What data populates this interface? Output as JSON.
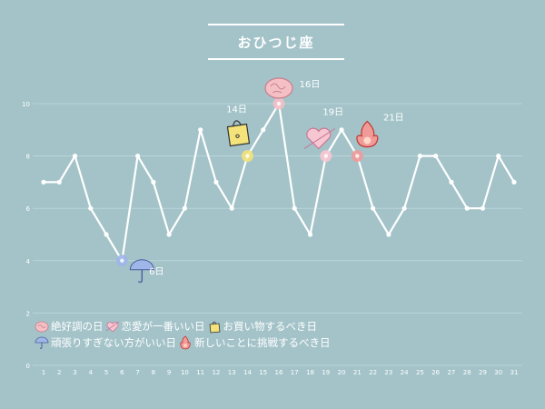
{
  "title": "おひつじ座",
  "chart_data": {
    "type": "line",
    "x": [
      1,
      2,
      3,
      4,
      5,
      6,
      7,
      8,
      9,
      10,
      11,
      12,
      13,
      14,
      15,
      16,
      17,
      18,
      19,
      20,
      21,
      22,
      23,
      24,
      25,
      26,
      27,
      28,
      29,
      30,
      31
    ],
    "values": [
      7,
      7,
      8,
      6,
      5,
      4,
      8,
      7,
      5,
      6,
      9,
      7,
      6,
      8,
      9,
      10,
      6,
      5,
      8,
      9,
      8,
      6,
      5,
      6,
      8,
      8,
      7,
      6,
      6,
      8,
      7
    ],
    "yticks": [
      0,
      2,
      4,
      6,
      8,
      10
    ],
    "ylim": [
      0,
      10
    ],
    "grid": true,
    "line_color": "#ffffff",
    "markers": [
      {
        "day": 6,
        "label": "6日",
        "kind": "umbrella",
        "color": "#9fb6e8"
      },
      {
        "day": 14,
        "label": "14日",
        "kind": "shopping",
        "color": "#f4e27a"
      },
      {
        "day": 16,
        "label": "16日",
        "kind": "best",
        "color": "#f4c0c6"
      },
      {
        "day": 19,
        "label": "19日",
        "kind": "love",
        "color": "#f7c6d3"
      },
      {
        "day": 21,
        "label": "21日",
        "kind": "challenge",
        "color": "#f09a9a"
      }
    ]
  },
  "legend": {
    "row1": [
      "絶好調の日",
      "恋愛が一番いい日",
      "お買い物するべき日"
    ],
    "row2": [
      "頑張りすぎない方がいい日",
      "新しいことに挑戦するべき日"
    ]
  }
}
